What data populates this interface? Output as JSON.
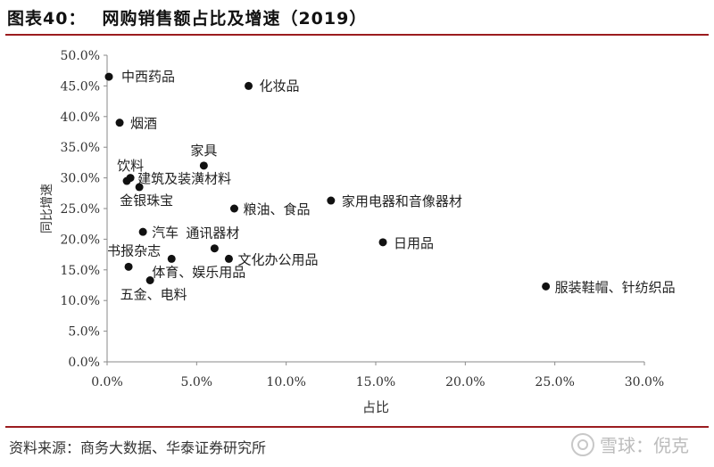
{
  "header": {
    "figure_no": "图表40：",
    "title": "网购销售额占比及增速（2019）"
  },
  "footer": {
    "source": "资料来源：商务大数据、华泰证券研究所",
    "watermark": "雪球：倪克"
  },
  "chart_data": {
    "type": "scatter",
    "title": "网购销售额占比及增速（2019）",
    "xlabel": "占比",
    "ylabel": "同比增速",
    "xlim": [
      0,
      30
    ],
    "ylim": [
      0,
      50
    ],
    "x_ticks": [
      "0.0%",
      "5.0%",
      "10.0%",
      "15.0%",
      "20.0%",
      "25.0%",
      "30.0%"
    ],
    "y_ticks": [
      "0.0%",
      "5.0%",
      "10.0%",
      "15.0%",
      "20.0%",
      "25.0%",
      "30.0%",
      "35.0%",
      "40.0%",
      "45.0%",
      "50.0%"
    ],
    "grid": false,
    "points": [
      {
        "label": "中西药品",
        "x": 0.1,
        "y": 46.5
      },
      {
        "label": "化妆品",
        "x": 7.9,
        "y": 45.0
      },
      {
        "label": "烟酒",
        "x": 0.7,
        "y": 39.0
      },
      {
        "label": "家具",
        "x": 5.4,
        "y": 32.0
      },
      {
        "label": "饮料",
        "x": 1.1,
        "y": 29.5
      },
      {
        "label": "建筑及装潢材料",
        "x": 1.3,
        "y": 30.0
      },
      {
        "label": "金银珠宝",
        "x": 1.8,
        "y": 28.5
      },
      {
        "label": "粮油、食品",
        "x": 7.1,
        "y": 25.0
      },
      {
        "label": "家用电器和音像器材",
        "x": 12.5,
        "y": 26.3
      },
      {
        "label": "汽车",
        "x": 2.0,
        "y": 21.2
      },
      {
        "label": "通讯器材",
        "x": 6.0,
        "y": 18.5
      },
      {
        "label": "日用品",
        "x": 15.4,
        "y": 19.5
      },
      {
        "label": "书报杂志",
        "x": 1.2,
        "y": 15.5
      },
      {
        "label": "文化办公用品",
        "x": 6.8,
        "y": 16.8
      },
      {
        "label": "体育、娱乐用品",
        "x": 3.6,
        "y": 16.8
      },
      {
        "label": "五金、电料",
        "x": 2.4,
        "y": 13.3
      },
      {
        "label": "服装鞋帽、针纺织品",
        "x": 24.5,
        "y": 12.3
      }
    ]
  }
}
